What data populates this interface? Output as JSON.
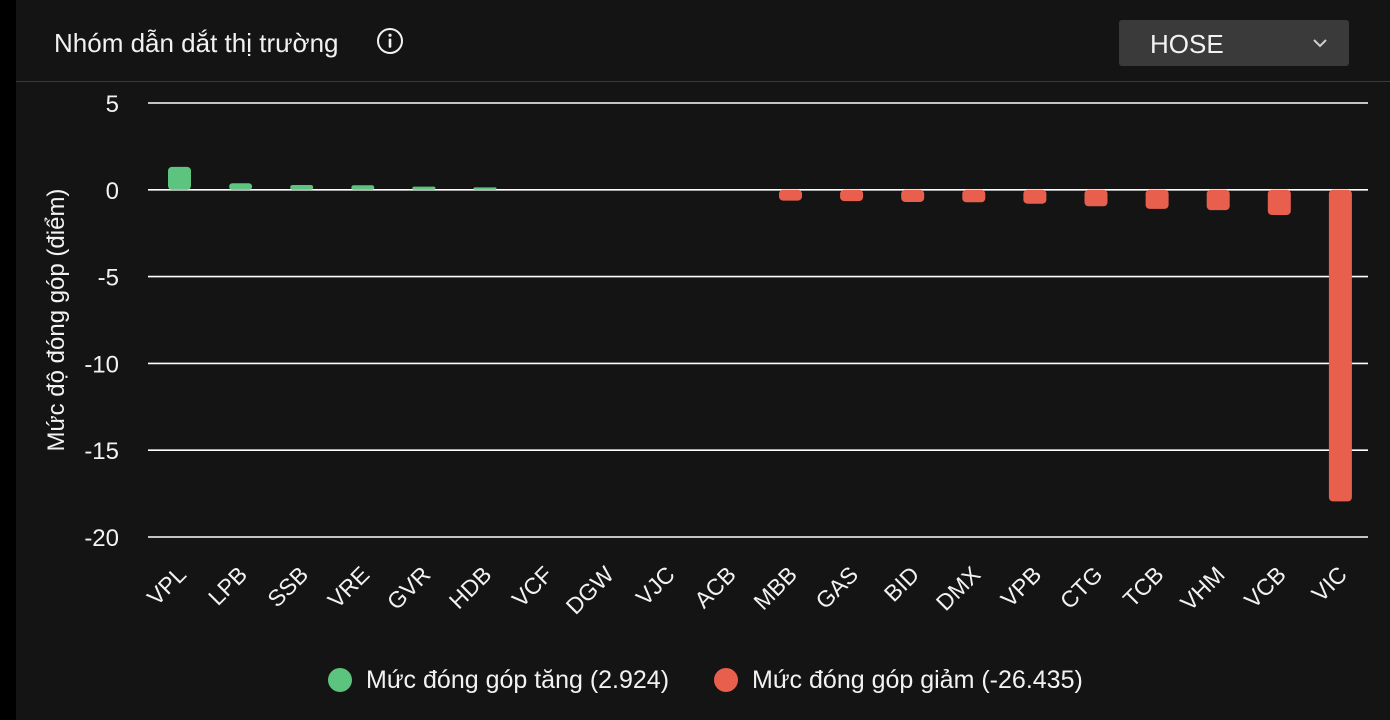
{
  "header": {
    "title": "Nhóm dẫn dắt thị trường",
    "info_icon": "info-icon",
    "exchange_selected": "HOSE",
    "dropdown_icon": "chevron-down-icon"
  },
  "legend": {
    "increase_label": "Mức đóng góp tăng (2.924)",
    "decrease_label": "Mức đóng góp giảm (-26.435)"
  },
  "colors": {
    "increase": "#5cc47e",
    "decrease": "#e8604d",
    "background": "#141414",
    "grid": "#ffffff",
    "text": "#f2f2f2"
  },
  "chart_data": {
    "type": "bar",
    "title": "",
    "xlabel": "",
    "ylabel": "Mức độ đóng góp (điểm)",
    "ylim": [
      -20,
      5
    ],
    "yticks": [
      5,
      0,
      -5,
      -10,
      -15,
      -20
    ],
    "grid": true,
    "legend_position": "bottom",
    "categories": [
      "VPL",
      "LPB",
      "SSB",
      "VRE",
      "GVR",
      "HDB",
      "VCF",
      "DGW",
      "VJC",
      "ACB",
      "MBB",
      "GAS",
      "BID",
      "DMX",
      "VPB",
      "CTG",
      "TCB",
      "VHM",
      "VCB",
      "VIC"
    ],
    "values": [
      1.32,
      0.38,
      0.28,
      0.26,
      0.18,
      0.14,
      0.02,
      0.01,
      0.01,
      0.01,
      -0.62,
      -0.65,
      -0.7,
      -0.72,
      -0.8,
      -0.95,
      -1.1,
      -1.17,
      -1.45,
      -17.95
    ],
    "series": [
      {
        "name": "Mức đóng góp tăng (2.924)",
        "color": "#5cc47e"
      },
      {
        "name": "Mức đóng góp giảm (-26.435)",
        "color": "#e8604d"
      }
    ]
  }
}
